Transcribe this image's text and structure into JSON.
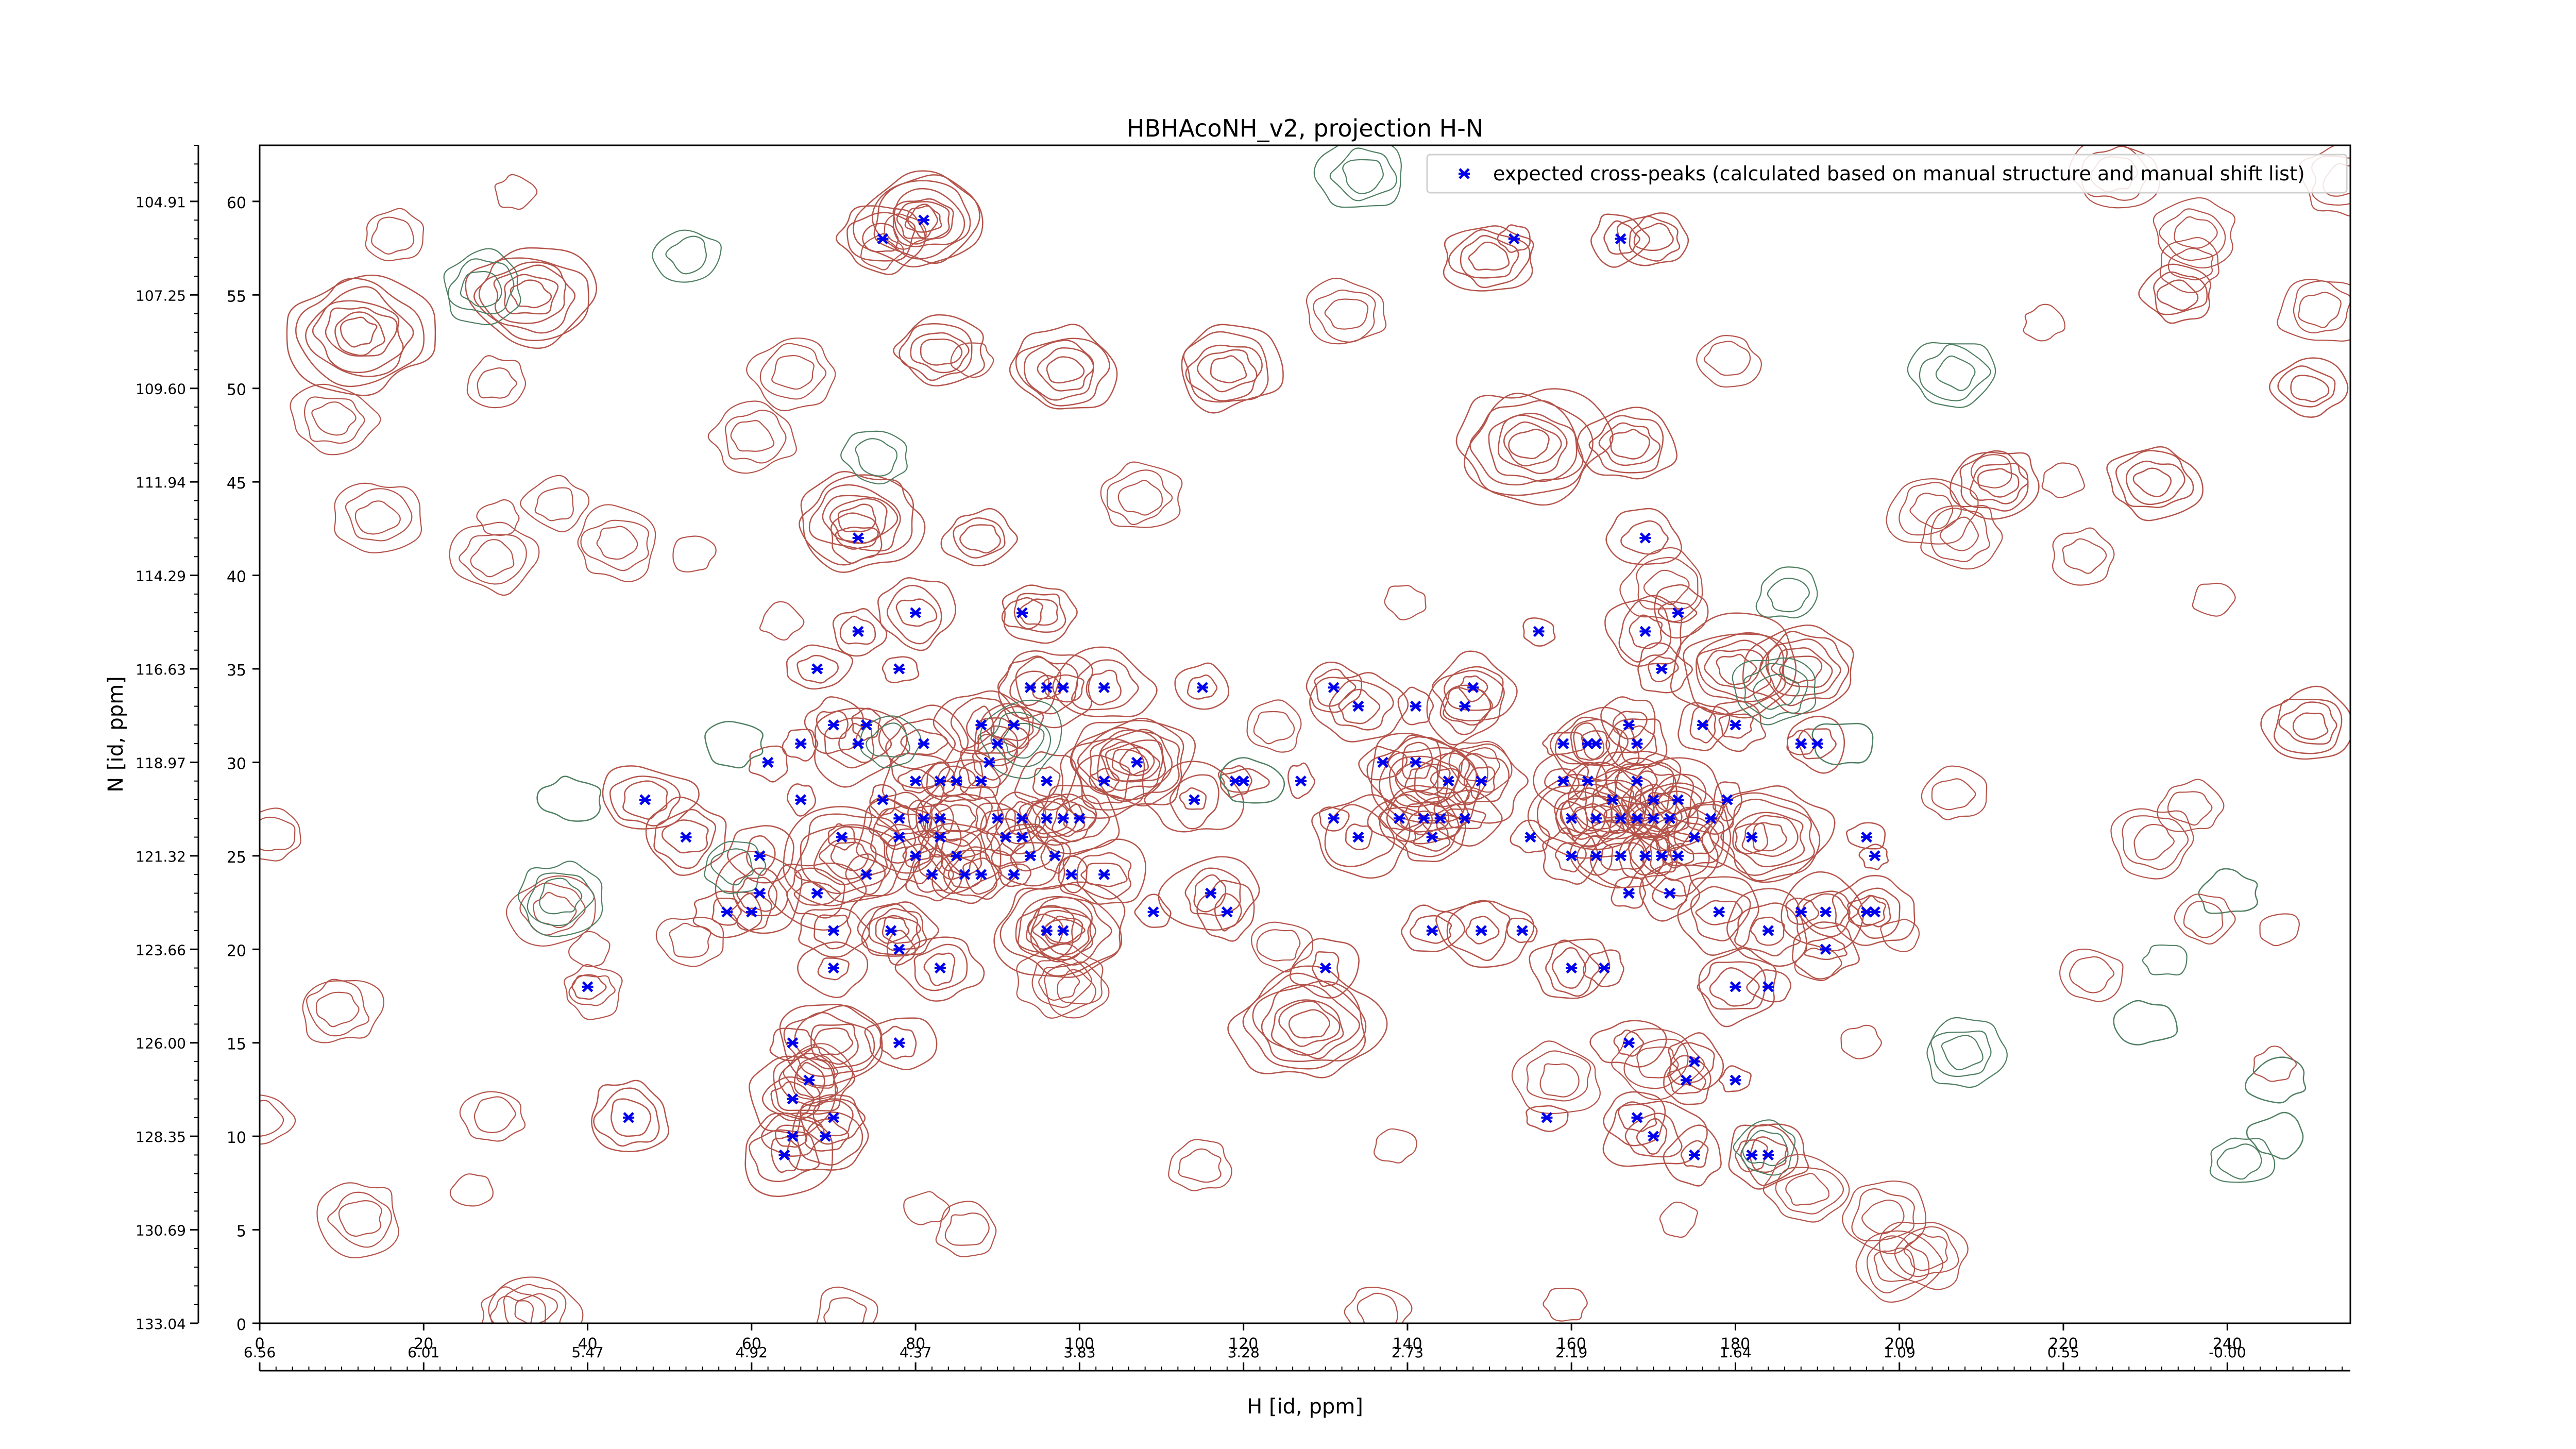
{
  "chart_data": {
    "type": "scatter",
    "title": "HBHAcoNH_v2, projection H-N",
    "xlabel": "H [id, ppm]",
    "ylabel": "N [id, ppm]",
    "xlim": [
      0,
      255
    ],
    "ylim": [
      0,
      63
    ],
    "grid": false,
    "legend_position": "top-right",
    "x_ticks": [
      0,
      20,
      40,
      60,
      80,
      100,
      120,
      140,
      160,
      180,
      200,
      220,
      240
    ],
    "x_ppm_ticks": [
      {
        "pos": 0,
        "label": "6.56"
      },
      {
        "pos": 20,
        "label": "6.01"
      },
      {
        "pos": 40,
        "label": "5.47"
      },
      {
        "pos": 60,
        "label": "4.92"
      },
      {
        "pos": 80,
        "label": "4.37"
      },
      {
        "pos": 100,
        "label": "3.83"
      },
      {
        "pos": 120,
        "label": "3.28"
      },
      {
        "pos": 140,
        "label": "2.73"
      },
      {
        "pos": 160,
        "label": "2.19"
      },
      {
        "pos": 180,
        "label": "1.64"
      },
      {
        "pos": 200,
        "label": "1.09"
      },
      {
        "pos": 220,
        "label": "0.55"
      },
      {
        "pos": 240,
        "label": "-0.00"
      }
    ],
    "y_ticks": [
      0,
      5,
      10,
      15,
      20,
      25,
      30,
      35,
      40,
      45,
      50,
      55,
      60
    ],
    "y_ppm_ticks": [
      {
        "pos": 0,
        "label": "133.04"
      },
      {
        "pos": 5,
        "label": "130.69"
      },
      {
        "pos": 10,
        "label": "128.35"
      },
      {
        "pos": 15,
        "label": "126.00"
      },
      {
        "pos": 20,
        "label": "123.66"
      },
      {
        "pos": 25,
        "label": "121.32"
      },
      {
        "pos": 30,
        "label": "118.97"
      },
      {
        "pos": 35,
        "label": "116.63"
      },
      {
        "pos": 40,
        "label": "114.29"
      },
      {
        "pos": 45,
        "label": "111.94"
      },
      {
        "pos": 50,
        "label": "109.60"
      },
      {
        "pos": 55,
        "label": "107.25"
      },
      {
        "pos": 60,
        "label": "104.91"
      }
    ],
    "colors": {
      "peaks": "#0000ee",
      "contour_positive": "#b5544b",
      "contour_negative": "#4f7f62"
    },
    "series": [
      {
        "name": "expected cross-peaks (calculated based on manual structure and manual shift list)",
        "marker": "x",
        "points": [
          [
            81,
            59
          ],
          [
            76,
            58
          ],
          [
            153,
            58
          ],
          [
            166,
            58
          ],
          [
            73,
            42
          ],
          [
            169,
            42
          ],
          [
            80,
            38
          ],
          [
            93,
            38
          ],
          [
            156,
            37
          ],
          [
            173,
            38
          ],
          [
            73,
            37
          ],
          [
            78,
            35
          ],
          [
            68,
            35
          ],
          [
            169,
            37
          ],
          [
            171,
            35
          ],
          [
            103,
            34
          ],
          [
            115,
            34
          ],
          [
            131,
            34
          ],
          [
            148,
            34
          ],
          [
            94,
            34
          ],
          [
            96,
            34
          ],
          [
            98,
            34
          ],
          [
            70,
            32
          ],
          [
            66,
            31
          ],
          [
            73,
            31
          ],
          [
            74,
            32
          ],
          [
            62,
            30
          ],
          [
            81,
            31
          ],
          [
            88,
            32
          ],
          [
            90,
            31
          ],
          [
            92,
            32
          ],
          [
            134,
            33
          ],
          [
            141,
            33
          ],
          [
            147,
            33
          ],
          [
            159,
            31
          ],
          [
            162,
            31
          ],
          [
            163,
            31
          ],
          [
            167,
            32
          ],
          [
            168,
            31
          ],
          [
            176,
            32
          ],
          [
            180,
            32
          ],
          [
            188,
            31
          ],
          [
            190,
            31
          ],
          [
            80,
            29
          ],
          [
            83,
            29
          ],
          [
            85,
            29
          ],
          [
            88,
            29
          ],
          [
            89,
            30
          ],
          [
            96,
            29
          ],
          [
            103,
            29
          ],
          [
            107,
            30
          ],
          [
            114,
            28
          ],
          [
            119,
            29
          ],
          [
            120,
            29
          ],
          [
            127,
            29
          ],
          [
            137,
            30
          ],
          [
            141,
            30
          ],
          [
            145,
            29
          ],
          [
            149,
            29
          ],
          [
            159,
            29
          ],
          [
            162,
            29
          ],
          [
            165,
            28
          ],
          [
            168,
            29
          ],
          [
            170,
            28
          ],
          [
            173,
            28
          ],
          [
            177,
            27
          ],
          [
            179,
            28
          ],
          [
            47,
            28
          ],
          [
            66,
            28
          ],
          [
            76,
            28
          ],
          [
            78,
            27
          ],
          [
            81,
            27
          ],
          [
            83,
            27
          ],
          [
            90,
            27
          ],
          [
            93,
            27
          ],
          [
            96,
            27
          ],
          [
            98,
            27
          ],
          [
            100,
            27
          ],
          [
            131,
            27
          ],
          [
            139,
            27
          ],
          [
            142,
            27
          ],
          [
            144,
            27
          ],
          [
            147,
            27
          ],
          [
            160,
            27
          ],
          [
            163,
            27
          ],
          [
            166,
            27
          ],
          [
            168,
            27
          ],
          [
            170,
            27
          ],
          [
            172,
            27
          ],
          [
            175,
            26
          ],
          [
            182,
            26
          ],
          [
            52,
            26
          ],
          [
            61,
            25
          ],
          [
            71,
            26
          ],
          [
            78,
            26
          ],
          [
            80,
            25
          ],
          [
            83,
            26
          ],
          [
            85,
            25
          ],
          [
            88,
            24
          ],
          [
            91,
            26
          ],
          [
            93,
            26
          ],
          [
            94,
            25
          ],
          [
            97,
            25
          ],
          [
            99,
            24
          ],
          [
            103,
            24
          ],
          [
            134,
            26
          ],
          [
            143,
            26
          ],
          [
            155,
            26
          ],
          [
            160,
            25
          ],
          [
            163,
            25
          ],
          [
            166,
            25
          ],
          [
            169,
            25
          ],
          [
            171,
            25
          ],
          [
            173,
            25
          ],
          [
            196,
            26
          ],
          [
            197,
            25
          ],
          [
            57,
            22
          ],
          [
            60,
            22
          ],
          [
            61,
            23
          ],
          [
            68,
            23
          ],
          [
            74,
            24
          ],
          [
            82,
            24
          ],
          [
            86,
            24
          ],
          [
            92,
            24
          ],
          [
            109,
            22
          ],
          [
            116,
            23
          ],
          [
            118,
            22
          ],
          [
            167,
            23
          ],
          [
            172,
            23
          ],
          [
            178,
            22
          ],
          [
            188,
            22
          ],
          [
            191,
            22
          ],
          [
            196,
            22
          ],
          [
            197,
            22
          ],
          [
            70,
            21
          ],
          [
            77,
            21
          ],
          [
            78,
            20
          ],
          [
            96,
            21
          ],
          [
            98,
            21
          ],
          [
            143,
            21
          ],
          [
            149,
            21
          ],
          [
            154,
            21
          ],
          [
            184,
            21
          ],
          [
            191,
            20
          ],
          [
            70,
            19
          ],
          [
            83,
            19
          ],
          [
            130,
            19
          ],
          [
            160,
            19
          ],
          [
            164,
            19
          ],
          [
            180,
            18
          ],
          [
            184,
            18
          ],
          [
            40,
            18
          ],
          [
            65,
            15
          ],
          [
            78,
            15
          ],
          [
            167,
            15
          ],
          [
            175,
            14
          ],
          [
            174,
            13
          ],
          [
            180,
            13
          ],
          [
            67,
            13
          ],
          [
            65,
            12
          ],
          [
            70,
            11
          ],
          [
            168,
            11
          ],
          [
            45,
            11
          ],
          [
            157,
            11
          ],
          [
            65,
            10
          ],
          [
            64,
            9
          ],
          [
            69,
            10
          ],
          [
            170,
            10
          ],
          [
            175,
            9
          ],
          [
            182,
            9
          ],
          [
            184,
            9
          ]
        ]
      }
    ],
    "contour_groups": [
      {
        "sign": "positive",
        "centers": [
          [
            81,
            59
          ],
          [
            170,
            58
          ],
          [
            150,
            57
          ],
          [
            12,
            53
          ],
          [
            33,
            55
          ],
          [
            83,
            52
          ],
          [
            98,
            51
          ],
          [
            118,
            51
          ],
          [
            234,
            55
          ]
        ]
      },
      {
        "sign": "positive",
        "centers": [
          [
            73,
            43
          ],
          [
            88,
            42
          ],
          [
            95,
            38
          ],
          [
            155,
            47
          ],
          [
            167,
            47
          ],
          [
            212,
            45
          ],
          [
            231,
            45
          ],
          [
            250,
            50
          ],
          [
            250,
            32
          ],
          [
            180,
            35
          ],
          [
            188,
            35
          ]
        ]
      },
      {
        "sign": "positive",
        "centers": [
          [
            72,
            25
          ],
          [
            78,
            21
          ],
          [
            98,
            21
          ],
          [
            128,
            16
          ],
          [
            70,
            15
          ],
          [
            184,
            26
          ],
          [
            142,
            29
          ],
          [
            162,
            27
          ],
          [
            106,
            30
          ],
          [
            85,
            27
          ]
        ]
      },
      {
        "sign": "negative",
        "centers": [
          [
            38,
            28
          ],
          [
            58,
            31
          ],
          [
            121,
            29
          ],
          [
            193,
            31
          ],
          [
            240,
            23
          ],
          [
            246,
            13
          ],
          [
            246,
            10
          ],
          [
            230,
            16
          ]
        ]
      }
    ]
  }
}
